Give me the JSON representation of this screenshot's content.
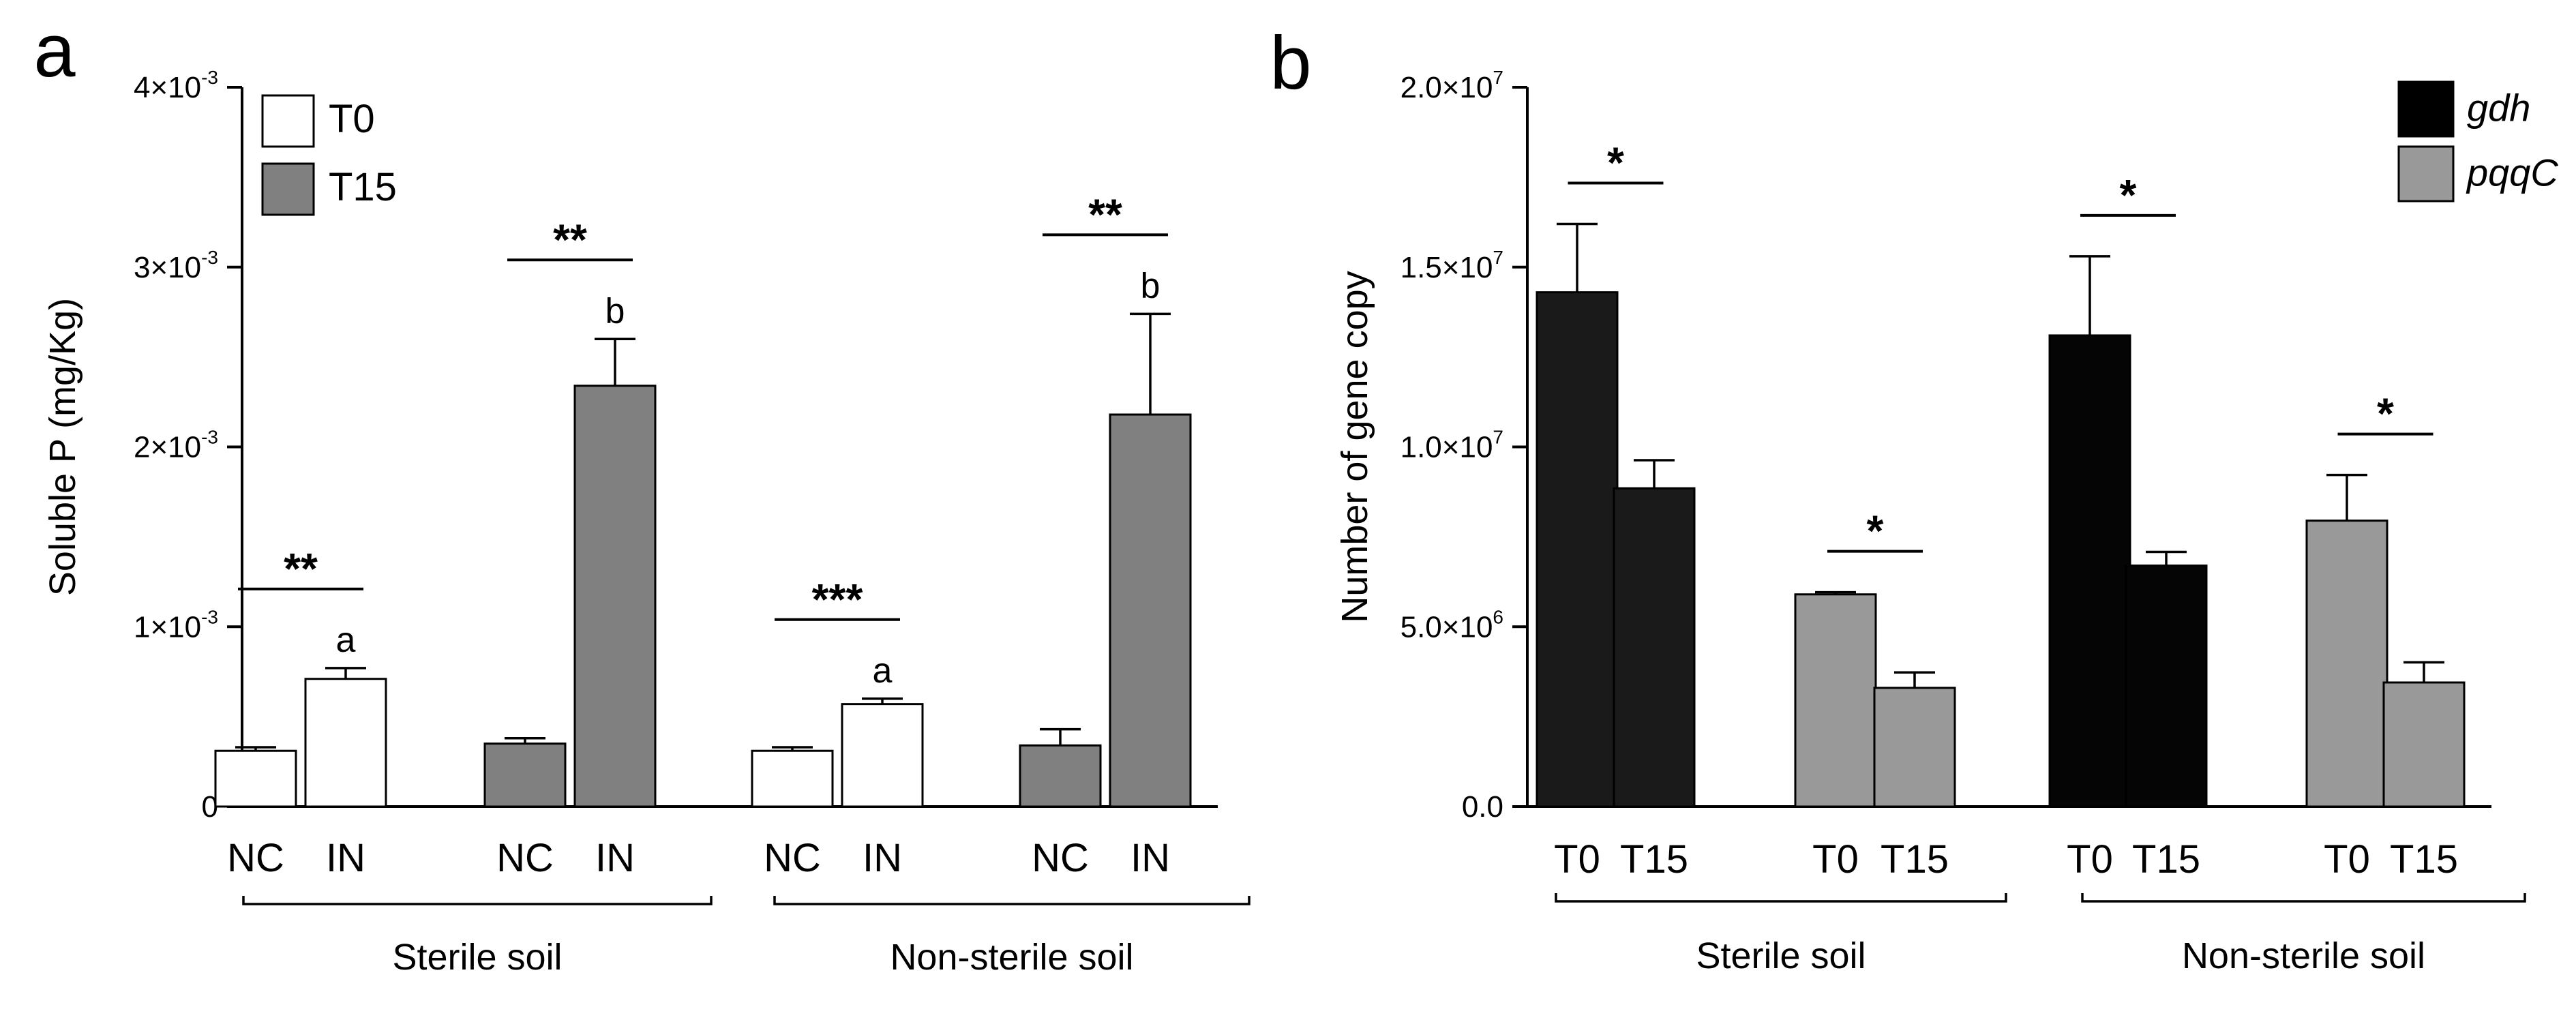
{
  "chart_data": [
    {
      "type": "bar",
      "panel_letter": "a",
      "ylabel": "Soluble P (mg/Kg)",
      "ylim": [
        0,
        0.004
      ],
      "yticks": [
        {
          "value": 0,
          "mantissa": "0",
          "exponent": ""
        },
        {
          "value": 0.001,
          "mantissa": "1×10",
          "exponent": "-3"
        },
        {
          "value": 0.002,
          "mantissa": "2×10",
          "exponent": "-3"
        },
        {
          "value": 0.003,
          "mantissa": "3×10",
          "exponent": "-3"
        },
        {
          "value": 0.004,
          "mantissa": "4×10",
          "exponent": "-3"
        }
      ],
      "legend": [
        {
          "label": "T0",
          "color": "#ffffff"
        },
        {
          "label": "T15",
          "color": "#808080"
        }
      ],
      "legend_position": "top-left",
      "groups": [
        {
          "label": "Sterile soil",
          "clusters": [
            {
              "bars": [
                {
                  "label": "NC",
                  "value": 0.00031,
                  "error": 2e-05,
                  "color": "#ffffff"
                },
                {
                  "label": "IN",
                  "value": 0.00071,
                  "error": 6e-05,
                  "color": "#ffffff",
                  "letter": "a"
                }
              ],
              "significance": "**"
            },
            {
              "bars": [
                {
                  "label": "NC",
                  "value": 0.00035,
                  "error": 3e-05,
                  "color": "#808080"
                },
                {
                  "label": "IN",
                  "value": 0.00234,
                  "error": 0.00026,
                  "color": "#808080",
                  "letter": "b"
                }
              ],
              "significance": "**"
            }
          ]
        },
        {
          "label": "Non-sterile soil",
          "clusters": [
            {
              "bars": [
                {
                  "label": "NC",
                  "value": 0.00031,
                  "error": 2e-05,
                  "color": "#ffffff"
                },
                {
                  "label": "IN",
                  "value": 0.00057,
                  "error": 3e-05,
                  "color": "#ffffff",
                  "letter": "a"
                }
              ],
              "significance": "***"
            },
            {
              "bars": [
                {
                  "label": "NC",
                  "value": 0.00034,
                  "error": 9e-05,
                  "color": "#808080"
                },
                {
                  "label": "IN",
                  "value": 0.00218,
                  "error": 0.00056,
                  "color": "#808080",
                  "letter": "b"
                }
              ],
              "significance": "**"
            }
          ]
        }
      ]
    },
    {
      "type": "bar",
      "panel_letter": "b",
      "ylabel": "Number of gene copy",
      "ylim": [
        0,
        20000000
      ],
      "yticks": [
        {
          "value": 0,
          "mantissa": "0.0",
          "exponent": ""
        },
        {
          "value": 5000000,
          "mantissa": "5.0×10",
          "exponent": "6"
        },
        {
          "value": 10000000,
          "mantissa": "1.0×10",
          "exponent": "7"
        },
        {
          "value": 15000000,
          "mantissa": "1.5×10",
          "exponent": "7"
        },
        {
          "value": 20000000,
          "mantissa": "2.0×10",
          "exponent": "7"
        }
      ],
      "legend": [
        {
          "label": "gdh",
          "color": "#000000"
        },
        {
          "label": "pqqC",
          "color": "#999999"
        }
      ],
      "legend_position": "top-right",
      "groups": [
        {
          "label": "Sterile soil",
          "clusters": [
            {
              "bars": [
                {
                  "label": "T0",
                  "value": 14300000,
                  "error": 1900000,
                  "color": "#1a1a1a"
                },
                {
                  "label": "T15",
                  "value": 8850000,
                  "error": 780000,
                  "color": "#1a1a1a"
                }
              ],
              "significance": "*"
            },
            {
              "bars": [
                {
                  "label": "T0",
                  "value": 5900000,
                  "error": 60000,
                  "color": "#999999"
                },
                {
                  "label": "T15",
                  "value": 3300000,
                  "error": 430000,
                  "color": "#999999"
                }
              ],
              "significance": "*"
            }
          ]
        },
        {
          "label": "Non-sterile soil",
          "clusters": [
            {
              "bars": [
                {
                  "label": "T0",
                  "value": 13100000,
                  "error": 2200000,
                  "color": "#050505"
                },
                {
                  "label": "T15",
                  "value": 6700000,
                  "error": 380000,
                  "color": "#050505"
                }
              ],
              "significance": "*"
            },
            {
              "bars": [
                {
                  "label": "T0",
                  "value": 7950000,
                  "error": 1270000,
                  "color": "#999999"
                },
                {
                  "label": "T15",
                  "value": 3450000,
                  "error": 560000,
                  "color": "#999999"
                }
              ],
              "significance": "*"
            }
          ]
        }
      ]
    }
  ]
}
